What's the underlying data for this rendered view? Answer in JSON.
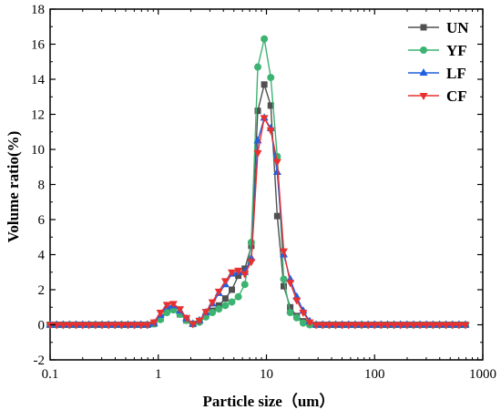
{
  "chart_data": {
    "type": "line",
    "xlabel": "Particle size（um）",
    "ylabel": "Volume ratio(%)",
    "xscale": "log",
    "xlim": [
      0.1,
      1000
    ],
    "ylim": [
      -2,
      18
    ],
    "x_ticks": [
      0.1,
      1,
      10,
      100,
      1000
    ],
    "x_tick_labels": [
      "0.1",
      "1",
      "10",
      "100",
      "1000"
    ],
    "y_ticks": [
      -2,
      0,
      2,
      4,
      6,
      8,
      10,
      12,
      14,
      16,
      18
    ],
    "y_tick_labels": [
      "-2",
      "0",
      "2",
      "4",
      "6",
      "8",
      "10",
      "12",
      "14",
      "16",
      "18"
    ],
    "legend_position": "top-right",
    "grid": false,
    "series": [
      {
        "name": "UN",
        "color": "#505050",
        "marker": "square",
        "x": [
          0.1,
          0.115,
          0.132,
          0.151,
          0.174,
          0.2,
          0.229,
          0.263,
          0.302,
          0.347,
          0.398,
          0.457,
          0.525,
          0.603,
          0.692,
          0.794,
          0.912,
          1.047,
          1.202,
          1.38,
          1.585,
          1.82,
          2.089,
          2.399,
          2.754,
          3.162,
          3.631,
          4.169,
          4.786,
          5.495,
          6.31,
          7.244,
          8.318,
          9.55,
          10.965,
          12.589,
          14.454,
          16.596,
          19.055,
          21.878,
          25.119,
          28.84,
          33.113,
          38.019,
          43.652,
          50.119,
          57.544,
          66.069,
          75.858,
          87.096,
          100,
          114.8,
          131.8,
          151.4,
          173.8,
          199.5,
          229.1,
          263,
          302,
          346.7,
          398.1,
          457.1,
          524.8,
          602.6,
          691.8
        ],
        "y": [
          0,
          0,
          0,
          0,
          0,
          0,
          0,
          0,
          0,
          0,
          0,
          0,
          0,
          0,
          0,
          0,
          0.05,
          0.35,
          0.85,
          0.9,
          0.6,
          0.25,
          0.05,
          0.2,
          0.5,
          0.8,
          1.1,
          1.5,
          2,
          2.8,
          3.2,
          4.5,
          12.2,
          13.7,
          12.5,
          6.2,
          2.2,
          1.0,
          0.5,
          0.2,
          0.05,
          0,
          0,
          0,
          0,
          0,
          0,
          0,
          0,
          0,
          0,
          0,
          0,
          0,
          0,
          0,
          0,
          0,
          0,
          0,
          0,
          0,
          0,
          0,
          0
        ]
      },
      {
        "name": "YF",
        "color": "#3cb371",
        "marker": "circle",
        "x": [
          0.1,
          0.115,
          0.132,
          0.151,
          0.174,
          0.2,
          0.229,
          0.263,
          0.302,
          0.347,
          0.398,
          0.457,
          0.525,
          0.603,
          0.692,
          0.794,
          0.912,
          1.047,
          1.202,
          1.38,
          1.585,
          1.82,
          2.089,
          2.399,
          2.754,
          3.162,
          3.631,
          4.169,
          4.786,
          5.495,
          6.31,
          7.244,
          8.318,
          9.55,
          10.965,
          12.589,
          14.454,
          16.596,
          19.055,
          21.878,
          25.119,
          28.84,
          33.113,
          38.019,
          43.652,
          50.119,
          57.544,
          66.069,
          75.858,
          87.096,
          100,
          114.8,
          131.8,
          151.4,
          173.8,
          199.5,
          229.1,
          263,
          302,
          346.7,
          398.1,
          457.1,
          524.8,
          602.6,
          691.8
        ],
        "y": [
          0,
          0,
          0,
          0,
          0,
          0,
          0,
          0,
          0,
          0,
          0,
          0,
          0,
          0,
          0,
          0,
          0.05,
          0.3,
          0.7,
          0.85,
          0.6,
          0.25,
          0.05,
          0.15,
          0.45,
          0.7,
          0.9,
          1.1,
          1.3,
          1.6,
          2.3,
          4.7,
          14.7,
          16.3,
          14.1,
          9.6,
          2.6,
          0.7,
          0.4,
          0.1,
          0,
          0,
          0,
          0,
          0,
          0,
          0,
          0,
          0,
          0,
          0,
          0,
          0,
          0,
          0,
          0,
          0,
          0,
          0,
          0,
          0,
          0,
          0,
          0,
          0
        ]
      },
      {
        "name": "LF",
        "color": "#1f5fe0",
        "marker": "triangle-up",
        "x": [
          0.1,
          0.115,
          0.132,
          0.151,
          0.174,
          0.2,
          0.229,
          0.263,
          0.302,
          0.347,
          0.398,
          0.457,
          0.525,
          0.603,
          0.692,
          0.794,
          0.912,
          1.047,
          1.202,
          1.38,
          1.585,
          1.82,
          2.089,
          2.399,
          2.754,
          3.162,
          3.631,
          4.169,
          4.786,
          5.495,
          6.31,
          7.244,
          8.318,
          9.55,
          10.965,
          12.589,
          14.454,
          16.596,
          19.055,
          21.878,
          25.119,
          28.84,
          33.113,
          38.019,
          43.652,
          50.119,
          57.544,
          66.069,
          75.858,
          87.096,
          100,
          114.8,
          131.8,
          151.4,
          173.8,
          199.5,
          229.1,
          263,
          302,
          346.7,
          398.1,
          457.1,
          524.8,
          602.6,
          691.8
        ],
        "y": [
          0,
          0,
          0,
          0,
          0,
          0,
          0,
          0,
          0,
          0,
          0,
          0,
          0,
          0,
          0,
          0,
          0.1,
          0.55,
          1.05,
          1.1,
          0.8,
          0.35,
          0.05,
          0.25,
          0.7,
          1.2,
          1.8,
          2.3,
          2.9,
          3.0,
          3.0,
          3.8,
          10.5,
          11.8,
          11.2,
          8.7,
          4.0,
          2.6,
          1.6,
          0.8,
          0.2,
          0,
          0,
          0,
          0,
          0,
          0,
          0,
          0,
          0,
          0,
          0,
          0,
          0,
          0,
          0,
          0,
          0,
          0,
          0,
          0,
          0,
          0,
          0,
          0
        ]
      },
      {
        "name": "CF",
        "color": "#e83030",
        "marker": "triangle-down",
        "x": [
          0.1,
          0.115,
          0.132,
          0.151,
          0.174,
          0.2,
          0.229,
          0.263,
          0.302,
          0.347,
          0.398,
          0.457,
          0.525,
          0.603,
          0.692,
          0.794,
          0.912,
          1.047,
          1.202,
          1.38,
          1.585,
          1.82,
          2.089,
          2.399,
          2.754,
          3.162,
          3.631,
          4.169,
          4.786,
          5.495,
          6.31,
          7.244,
          8.318,
          9.55,
          10.965,
          12.589,
          14.454,
          16.596,
          19.055,
          21.878,
          25.119,
          28.84,
          33.113,
          38.019,
          43.652,
          50.119,
          57.544,
          66.069,
          75.858,
          87.096,
          100,
          114.8,
          131.8,
          151.4,
          173.8,
          199.5,
          229.1,
          263,
          302,
          346.7,
          398.1,
          457.1,
          524.8,
          602.6,
          691.8
        ],
        "y": [
          0,
          0,
          0,
          0,
          0,
          0,
          0,
          0,
          0,
          0,
          0,
          0,
          0,
          0,
          0,
          0,
          0.15,
          0.7,
          1.15,
          1.2,
          0.9,
          0.4,
          0.05,
          0.25,
          0.75,
          1.3,
          1.9,
          2.5,
          3.0,
          3.1,
          2.9,
          3.6,
          9.8,
          11.8,
          11.1,
          9.3,
          4.2,
          2.4,
          1.4,
          0.7,
          0.15,
          0,
          0,
          0,
          0,
          0,
          0,
          0,
          0,
          0,
          0,
          0,
          0,
          0,
          0,
          0,
          0,
          0,
          0,
          0,
          0,
          0,
          0,
          0,
          0
        ]
      }
    ]
  }
}
